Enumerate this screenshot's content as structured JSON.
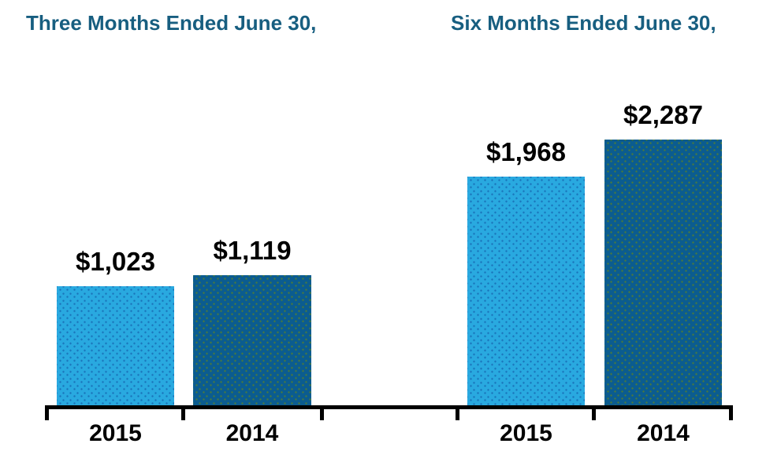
{
  "chart_data": {
    "type": "bar",
    "title": "",
    "xlabel": "",
    "ylabel": "",
    "grid": false,
    "legend": false,
    "ylim": [
      0,
      2450
    ],
    "value_prefix": "$",
    "groups": [
      {
        "label": "Three Months Ended June 30,",
        "categories": [
          "2015",
          "2014"
        ],
        "values": [
          1023,
          1119
        ]
      },
      {
        "label": "Six Months Ended June 30,",
        "categories": [
          "2015",
          "2014"
        ],
        "values": [
          1968,
          2287
        ]
      }
    ],
    "bars": [
      {
        "group": "Three Months Ended June 30,",
        "category": "2015",
        "series": "2015",
        "value": 1023,
        "label": "$1,023"
      },
      {
        "group": "Three Months Ended June 30,",
        "category": "2014",
        "series": "2014",
        "value": 1119,
        "label": "$1,119"
      },
      {
        "group": "Six Months Ended June 30,",
        "category": "2015",
        "series": "2015",
        "value": 1968,
        "label": "$1,968"
      },
      {
        "group": "Six Months Ended June 30,",
        "category": "2014",
        "series": "2014",
        "value": 2287,
        "label": "$2,287"
      }
    ],
    "series_colors": {
      "2015": "#29a9e0",
      "2014": "#0b5c90"
    },
    "series_dot_colors": {
      "2015": "#1a74ba",
      "2014": "#4a7a3c"
    }
  },
  "colors": {
    "header_text": "#175e80",
    "axis": "#000000",
    "value_label_text": "#000000",
    "background": "#ffffff"
  }
}
